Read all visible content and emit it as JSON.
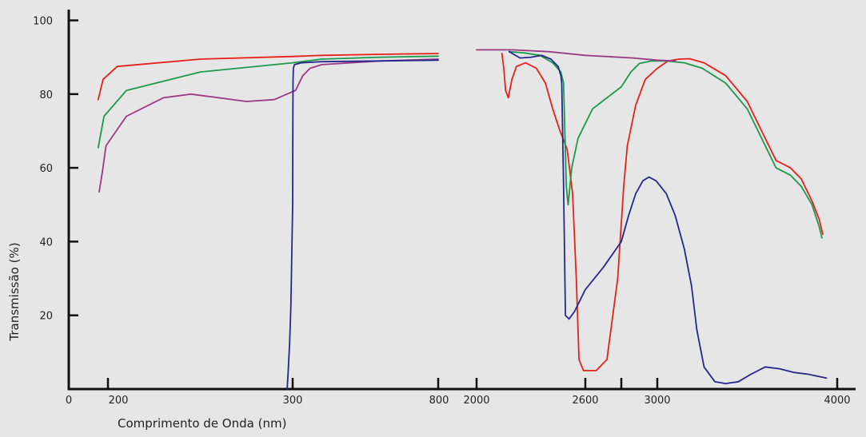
{
  "chart_data": {
    "type": "line",
    "title": "",
    "xlabel": "Comprimento de Onda (nm)",
    "ylabel": "Transmissão (%)",
    "x_axis_broken": true,
    "x_ticks": [
      {
        "label": "0"
      },
      {
        "label": "200"
      },
      {
        "label": "300"
      },
      {
        "label": "800"
      },
      {
        "label": "2000"
      },
      {
        "label": "2600"
      },
      {
        "label": "3000"
      },
      {
        "label": "4000"
      }
    ],
    "y_ticks": [
      "100",
      "80",
      "60",
      "40",
      "20"
    ],
    "ylim": [
      0,
      105
    ],
    "grid": false,
    "legend": "none",
    "series": [
      {
        "color": "#e8201a",
        "segments": [
          [
            [
              150,
              78.5
            ],
            [
              175,
              84
            ],
            [
              205,
              87.5
            ],
            [
              250,
              89.5
            ],
            [
              300,
              90.2
            ],
            [
              400,
              90.5
            ],
            [
              600,
              90.8
            ],
            [
              800,
              91
            ]
          ],
          [
            [
              2140,
              91
            ],
            [
              2150,
              87
            ],
            [
              2160,
              81
            ],
            [
              2175,
              79
            ],
            [
              2195,
              84
            ],
            [
              2220,
              87.5
            ],
            [
              2270,
              88.5
            ],
            [
              2330,
              87
            ],
            [
              2380,
              83
            ],
            [
              2420,
              76
            ],
            [
              2460,
              70
            ],
            [
              2500,
              65
            ],
            [
              2530,
              53
            ],
            [
              2550,
              30
            ],
            [
              2565,
              8
            ],
            [
              2590,
              5
            ],
            [
              2630,
              5
            ],
            [
              2660,
              8
            ],
            [
              2690,
              30
            ],
            [
              2720,
              55
            ],
            [
              2750,
              66
            ],
            [
              2820,
              77
            ],
            [
              2900,
              84
            ],
            [
              3000,
              87
            ],
            [
              3060,
              89
            ],
            [
              3120,
              89.5
            ],
            [
              3180,
              89.6
            ],
            [
              3260,
              88.5
            ],
            [
              3380,
              85
            ],
            [
              3500,
              78
            ],
            [
              3620,
              66
            ],
            [
              3660,
              62
            ],
            [
              3700,
              61
            ],
            [
              3740,
              60
            ],
            [
              3800,
              57
            ],
            [
              3860,
              51
            ],
            [
              3900,
              46
            ],
            [
              3920,
              42
            ]
          ]
        ]
      },
      {
        "color": "#1a9a4a",
        "segments": [
          [
            [
              150,
              65.5
            ],
            [
              180,
              74
            ],
            [
              210,
              81
            ],
            [
              250,
              86
            ],
            [
              300,
              88.5
            ],
            [
              400,
              89.5
            ],
            [
              600,
              90
            ],
            [
              800,
              90.3
            ]
          ],
          [
            [
              2180,
              91.5
            ],
            [
              2260,
              91.2
            ],
            [
              2350,
              90.5
            ],
            [
              2420,
              88.5
            ],
            [
              2465,
              86
            ],
            [
              2480,
              83
            ],
            [
              2495,
              55
            ],
            [
              2505,
              50
            ],
            [
              2525,
              60
            ],
            [
              2560,
              68
            ],
            [
              2620,
              76
            ],
            [
              2700,
              82
            ],
            [
              2780,
              86
            ],
            [
              2850,
              88.3
            ],
            [
              2950,
              89
            ],
            [
              3050,
              89
            ],
            [
              3150,
              88.5
            ],
            [
              3250,
              87
            ],
            [
              3380,
              83
            ],
            [
              3500,
              76
            ],
            [
              3620,
              64
            ],
            [
              3660,
              60
            ],
            [
              3700,
              59
            ],
            [
              3740,
              58
            ],
            [
              3800,
              55
            ],
            [
              3860,
              50
            ],
            [
              3900,
              44
            ],
            [
              3915,
              41
            ]
          ]
        ]
      },
      {
        "color": "#9a3a86",
        "segments": [
          [
            [
              155,
              53.5
            ],
            [
              172,
              59
            ],
            [
              190,
              66
            ],
            [
              210,
              74
            ],
            [
              230,
              79
            ],
            [
              245,
              80
            ],
            [
              260,
              79
            ],
            [
              275,
              78
            ],
            [
              290,
              78.5
            ],
            [
              310,
              81
            ],
            [
              335,
              85
            ],
            [
              360,
              87
            ],
            [
              400,
              88
            ],
            [
              600,
              89
            ],
            [
              800,
              89.5
            ]
          ],
          [
            [
              2000,
              92
            ],
            [
              2200,
              92
            ],
            [
              2400,
              91.5
            ],
            [
              2600,
              90.5
            ],
            [
              2800,
              89.8
            ],
            [
              3000,
              89.2
            ],
            [
              3100,
              89
            ]
          ]
        ]
      },
      {
        "color": "#26268f",
        "segments": [
          [
            [
              297,
              0
            ],
            [
              297.5,
              4
            ],
            [
              298.3,
              12
            ],
            [
              299,
              22
            ],
            [
              299.5,
              35
            ],
            [
              300,
              50
            ],
            [
              300.4,
              65
            ],
            [
              300.8,
              76
            ],
            [
              301.3,
              84
            ],
            [
              302.5,
              87
            ],
            [
              306,
              88
            ],
            [
              330,
              88.5
            ],
            [
              400,
              88.8
            ],
            [
              600,
              89
            ],
            [
              800,
              89.2
            ]
          ],
          [
            [
              2180,
              91.5
            ],
            [
              2240,
              89.8
            ],
            [
              2300,
              90
            ],
            [
              2360,
              90.5
            ],
            [
              2410,
              89.5
            ],
            [
              2450,
              87.5
            ],
            [
              2465,
              85
            ],
            [
              2470,
              83
            ],
            [
              2480,
              55
            ],
            [
              2490,
              20
            ],
            [
              2510,
              19
            ],
            [
              2540,
              21
            ],
            [
              2600,
              27
            ],
            [
              2650,
              33
            ],
            [
              2700,
              40
            ],
            [
              2760,
              47
            ],
            [
              2820,
              53
            ],
            [
              2880,
              56.5
            ],
            [
              2930,
              57.5
            ],
            [
              2990,
              56.5
            ],
            [
              3050,
              53
            ],
            [
              3100,
              47
            ],
            [
              3150,
              38
            ],
            [
              3190,
              28
            ],
            [
              3220,
              16
            ],
            [
              3260,
              6
            ],
            [
              3320,
              2
            ],
            [
              3380,
              1.5
            ],
            [
              3450,
              2
            ],
            [
              3520,
              4
            ],
            [
              3600,
              6
            ],
            [
              3680,
              5.5
            ],
            [
              3760,
              4.5
            ],
            [
              3840,
              4
            ],
            [
              3940,
              3
            ]
          ]
        ]
      }
    ]
  }
}
